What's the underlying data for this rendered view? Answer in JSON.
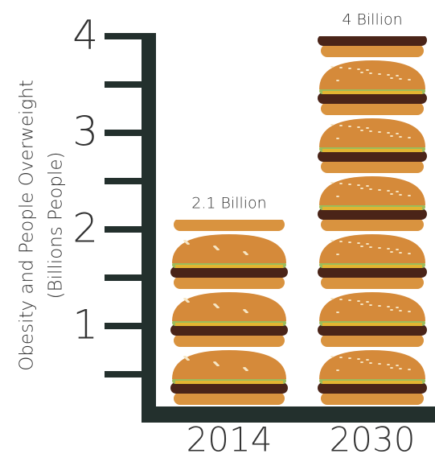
{
  "chart_data": {
    "type": "pictograph",
    "y_label": [
      "Obesity and People Overweight",
      "(Billions People)"
    ],
    "categories": [
      "2014",
      "2030"
    ],
    "values": [
      2.1,
      4
    ],
    "value_labels": [
      "2.1 Billion",
      "4 Billion"
    ],
    "ylim": [
      0,
      4
    ],
    "yticks": [
      1,
      2,
      3,
      4
    ],
    "minor_yticks": [
      0.5,
      1.5,
      2.5,
      3.5
    ],
    "axis_color": "#23302d"
  }
}
